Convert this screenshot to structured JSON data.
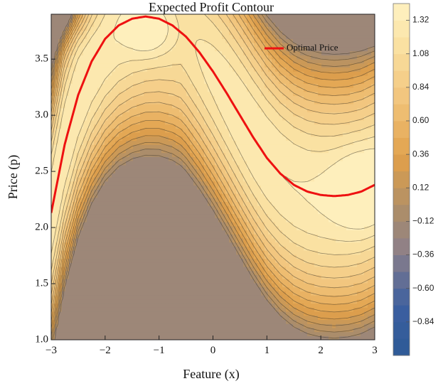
{
  "chart_data": {
    "type": "heatmap",
    "subtype": "filled-contour",
    "title": "Expected Profit Contour",
    "xlabel": "Feature (x)",
    "ylabel": "Price (p)",
    "xlim": [
      -3,
      3
    ],
    "ylim": [
      1.0,
      3.9
    ],
    "x_ticks": [
      "−3",
      "−2",
      "−1",
      "0",
      "1",
      "2",
      "3"
    ],
    "x_tick_values": [
      -3,
      -2,
      -1,
      0,
      1,
      2,
      3
    ],
    "y_ticks": [
      "1.0",
      "1.5",
      "2.0",
      "2.5",
      "3.0",
      "3.5"
    ],
    "y_tick_values": [
      1.0,
      1.5,
      2.0,
      2.5,
      3.0,
      3.5
    ],
    "colorbar": {
      "range": [
        -1.08,
        1.44
      ],
      "step": 0.12,
      "tick_labels": [
        "1.32",
        "1.08",
        "0.84",
        "0.60",
        "0.36",
        "0.12",
        "−0.12",
        "−0.36",
        "−0.60",
        "−0.84"
      ],
      "tick_values": [
        1.32,
        1.08,
        0.84,
        0.6,
        0.36,
        0.12,
        -0.12,
        -0.36,
        -0.6,
        -0.84
      ]
    },
    "series": [
      {
        "name": "Optimal Price",
        "color": "#ee1111",
        "x": [
          -3.0,
          -2.75,
          -2.5,
          -2.25,
          -2.0,
          -1.75,
          -1.5,
          -1.25,
          -1.0,
          -0.75,
          -0.5,
          -0.25,
          0.0,
          0.25,
          0.5,
          0.75,
          1.0,
          1.25,
          1.5,
          1.75,
          2.0,
          2.25,
          2.5,
          2.75,
          3.0
        ],
        "y": [
          2.13,
          2.74,
          3.18,
          3.48,
          3.68,
          3.8,
          3.86,
          3.88,
          3.86,
          3.8,
          3.7,
          3.56,
          3.39,
          3.2,
          3.0,
          2.8,
          2.62,
          2.48,
          2.38,
          2.32,
          2.29,
          2.28,
          2.29,
          2.32,
          2.38
        ]
      }
    ],
    "legend": {
      "position": "top-right",
      "entries": [
        "Optimal Price"
      ]
    },
    "palette": {
      "low": "#3c5fa0",
      "mid_low": "#a98c6c",
      "mid": "#e0a04a",
      "high": "#fff2c2"
    }
  }
}
